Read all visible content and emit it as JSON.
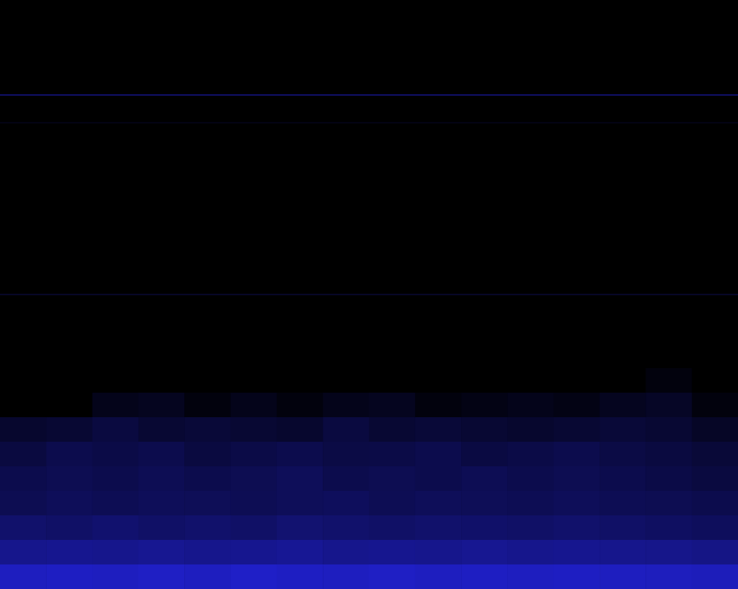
{
  "chart_data": {
    "type": "heatmap",
    "tick_labels": false,
    "grid": false,
    "color": "#0000ff",
    "xlim": [
      0,
      16
    ],
    "ylim": [
      0,
      24
    ],
    "cells": [
      [
        0,
        0,
        0,
        0,
        0,
        0,
        0,
        0,
        0,
        0,
        0,
        0,
        0,
        0,
        0,
        0
      ],
      [
        0,
        0,
        0,
        0,
        0,
        0,
        0,
        0,
        0,
        0,
        0,
        0,
        0,
        0,
        0,
        0
      ],
      [
        0,
        0,
        0,
        0,
        0,
        0,
        0,
        0,
        0,
        0,
        0,
        0,
        0,
        0,
        0,
        0
      ],
      [
        0,
        0,
        0,
        0,
        0,
        0,
        0,
        0,
        0,
        0,
        0,
        0,
        0,
        0,
        0,
        0
      ],
      [
        0,
        0,
        0,
        0,
        0,
        0,
        0,
        0,
        0,
        0,
        0,
        0,
        0,
        0,
        0,
        0
      ],
      [
        0,
        0,
        0,
        0,
        0,
        0,
        0,
        0,
        0,
        0,
        0,
        0,
        0,
        0,
        0,
        0
      ],
      [
        0,
        0,
        0,
        0,
        0,
        0,
        0,
        0,
        0,
        0,
        0,
        0,
        0,
        0,
        0,
        0
      ],
      [
        0,
        0,
        0,
        0,
        0,
        0,
        0,
        0,
        0,
        0,
        0,
        0,
        0,
        0,
        0,
        0
      ],
      [
        0,
        0,
        0,
        0,
        0,
        0,
        0,
        0,
        0,
        0,
        0,
        0,
        0,
        0,
        0,
        0
      ],
      [
        0,
        0,
        0,
        0,
        0,
        0,
        0,
        0,
        0,
        0,
        0,
        0,
        0,
        0,
        0,
        0
      ],
      [
        0,
        0,
        0,
        0,
        0,
        0,
        0,
        0,
        0,
        0,
        0,
        0,
        0,
        0,
        0,
        0
      ],
      [
        0,
        0,
        0,
        0,
        0,
        0,
        0,
        0,
        0,
        0,
        0,
        0,
        0,
        0,
        0,
        0
      ],
      [
        0,
        0,
        0,
        0,
        0,
        0,
        0,
        0,
        0,
        0,
        0,
        0,
        0,
        0,
        0,
        0
      ],
      [
        0,
        0,
        0,
        0,
        0,
        0,
        0,
        0,
        0,
        0,
        0,
        0,
        0,
        0,
        0,
        0
      ],
      [
        0,
        0,
        0,
        0,
        0,
        0,
        0,
        0,
        0,
        0,
        0,
        0,
        0,
        0,
        0,
        0
      ],
      [
        0,
        0,
        0,
        0,
        0,
        0,
        0,
        0,
        0,
        0,
        0,
        0,
        0,
        0,
        0.05,
        0
      ],
      [
        0,
        0,
        0.1,
        0.12,
        0.05,
        0.1,
        0.05,
        0.1,
        0.12,
        0.05,
        0.08,
        0.1,
        0.08,
        0.12,
        0.15,
        0.05
      ],
      [
        0.18,
        0.2,
        0.25,
        0.2,
        0.22,
        0.2,
        0.18,
        0.25,
        0.2,
        0.22,
        0.2,
        0.18,
        0.2,
        0.22,
        0.2,
        0.15
      ],
      [
        0.25,
        0.3,
        0.28,
        0.3,
        0.25,
        0.28,
        0.3,
        0.27,
        0.28,
        0.3,
        0.26,
        0.28,
        0.3,
        0.27,
        0.25,
        0.22
      ],
      [
        0.3,
        0.32,
        0.3,
        0.33,
        0.3,
        0.32,
        0.35,
        0.3,
        0.32,
        0.3,
        0.33,
        0.3,
        0.32,
        0.3,
        0.28,
        0.25
      ],
      [
        0.32,
        0.35,
        0.33,
        0.35,
        0.34,
        0.33,
        0.35,
        0.36,
        0.33,
        0.35,
        0.34,
        0.33,
        0.35,
        0.33,
        0.32,
        0.3
      ],
      [
        0.42,
        0.4,
        0.43,
        0.4,
        0.42,
        0.4,
        0.44,
        0.42,
        0.4,
        0.42,
        0.41,
        0.4,
        0.42,
        0.4,
        0.38,
        0.36
      ],
      [
        0.55,
        0.56,
        0.55,
        0.57,
        0.55,
        0.56,
        0.58,
        0.55,
        0.56,
        0.55,
        0.57,
        0.55,
        0.56,
        0.55,
        0.54,
        0.52
      ],
      [
        0.75,
        0.76,
        0.75,
        0.77,
        0.75,
        0.78,
        0.76,
        0.75,
        0.77,
        0.75,
        0.76,
        0.75,
        0.76,
        0.75,
        0.74,
        0.73
      ]
    ],
    "tones": [
      {
        "y": 20.13,
        "value": 0.5
      },
      {
        "y": 19.0,
        "value": 0.1
      },
      {
        "y": 12.0,
        "value": 0.2
      }
    ]
  }
}
